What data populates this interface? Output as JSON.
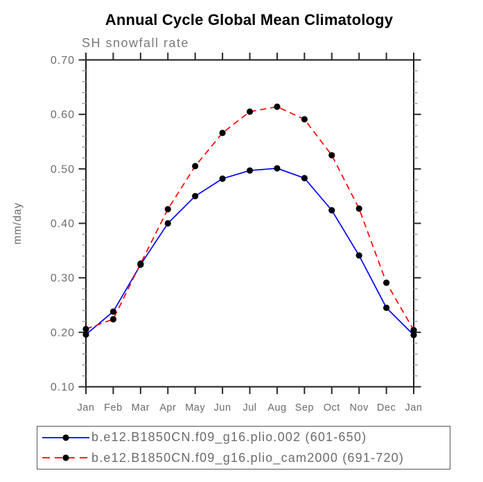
{
  "title": "Annual Cycle Global Mean Climatology",
  "subtitle": "SH snowfall rate",
  "ylabel": "mm/day",
  "colors": {
    "series1": "#0000ff",
    "series2": "#ff0000",
    "marker": "#000000",
    "axis": "#1a1a1a",
    "major_tick": "#2a2a2a",
    "minor_tick": "#999999",
    "label_gray": "#6b6b6b"
  },
  "legend": {
    "items": [
      {
        "label": "b.e12.B1850CN.f09_g16.plio.002 (601-650)",
        "color": "#0000ff",
        "style": "solid"
      },
      {
        "label": "b.e12.B1850CN.f09_g16.plio_cam2000 (691-720)",
        "color": "#ff0000",
        "style": "dashed"
      }
    ]
  },
  "chart_data": {
    "type": "line",
    "title": "Annual Cycle Global Mean Climatology",
    "subtitle": "SH snowfall rate",
    "xlabel": "",
    "ylabel": "mm/day",
    "x_tick_labels": [
      "Jan",
      "Feb",
      "Mar",
      "Apr",
      "May",
      "Jun",
      "Jul",
      "Aug",
      "Sep",
      "Oct",
      "Nov",
      "Dec",
      "Jan"
    ],
    "ylim": [
      0.1,
      0.7
    ],
    "ytick_step": 0.1,
    "yminor_step": 0.02,
    "grid": false,
    "legend_position": "bottom",
    "marker": "filled-circle",
    "series": [
      {
        "name": "b.e12.B1850CN.f09_g16.plio.002 (601-650)",
        "color": "#0000ff",
        "style": "solid",
        "values": [
          0.196,
          0.238,
          0.324,
          0.4,
          0.45,
          0.482,
          0.497,
          0.501,
          0.483,
          0.424,
          0.341,
          0.245,
          0.195
        ]
      },
      {
        "name": "b.e12.B1850CN.f09_g16.plio_cam2000 (691-720)",
        "color": "#ff0000",
        "style": "dashed",
        "values": [
          0.206,
          0.224,
          0.326,
          0.426,
          0.505,
          0.566,
          0.605,
          0.614,
          0.591,
          0.525,
          0.427,
          0.291,
          0.204
        ]
      }
    ]
  }
}
